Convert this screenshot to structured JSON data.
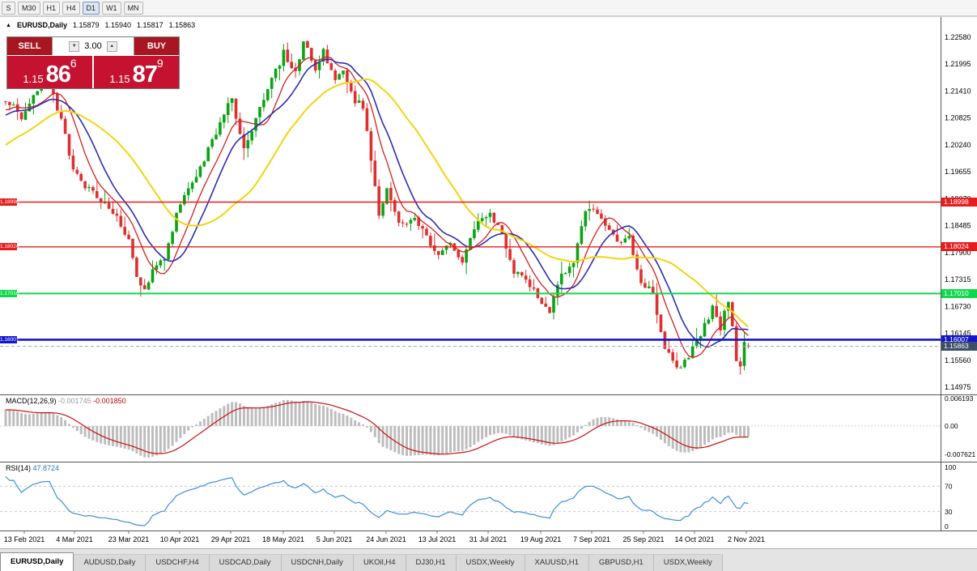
{
  "toolbar": {
    "buttons": [
      "S",
      "M30",
      "H1",
      "H4",
      "D1",
      "W1",
      "MN"
    ],
    "active": "D1"
  },
  "chart_header": {
    "collapse_icon": "▲",
    "symbol": "EURUSD,Daily",
    "open": "1.15879",
    "high": "1.15940",
    "low": "1.15817",
    "close": "1.15863"
  },
  "trade_widget": {
    "sell_label": "SELL",
    "buy_label": "BUY",
    "volume": "3.00",
    "spinner_down_icon": "▼",
    "spinner_up_icon": "▲",
    "sell_price": {
      "prefix": "1.15",
      "pips": "86",
      "point": "6"
    },
    "buy_price": {
      "prefix": "1.15",
      "pips": "87",
      "point": "9"
    }
  },
  "tabs": {
    "active_index": 0,
    "items": [
      "EURUSD,Daily",
      "AUDUSD,Daily",
      "USDCHF,H4",
      "USDCAD,Daily",
      "USDCNH,Daily",
      "UKOil,H4",
      "DJ30,H1",
      "USDX,Weekly",
      "XAUUSD,H1",
      "GBPUSD,H1",
      "USDX,Weekly"
    ]
  },
  "chart_data": {
    "type": "candlestick",
    "symbol": "EURUSD",
    "timeframe": "Daily",
    "y_axis": {
      "top": 1.2258,
      "step": 0.00585,
      "labels": [
        "1.22580",
        "1.21995",
        "1.21410",
        "1.20825",
        "1.20240",
        "1.19655",
        "1.19070",
        "1.18485",
        "1.17900",
        "1.17315",
        "1.16730",
        "1.16145",
        "1.15560",
        "1.14975"
      ]
    },
    "x_axis_dates": [
      "13 Feb 2021",
      "4 Mar 2021",
      "23 Mar 2021",
      "10 Apr 2021",
      "29 Apr 2021",
      "18 May 2021",
      "5 Jun 2021",
      "24 Jun 2021",
      "13 Jul 2021",
      "31 Jul 2021",
      "19 Aug 2021",
      "7 Sep 2021",
      "25 Sep 2021",
      "14 Oct 2021",
      "2 Nov 2021"
    ],
    "visible_count": 188,
    "prehistory_count": 55,
    "candle_colors": {
      "up": "#0aa314",
      "down": "#df2f2f"
    },
    "noise": {
      "seed": 11,
      "close": 0.0016,
      "gap": 0.00025,
      "wick": 0.003
    },
    "last_candle": {
      "open": 1.15879,
      "high": 1.1594,
      "low": 1.15817,
      "close": 1.15863
    },
    "price_path_anchors": [
      [
        -55,
        1.183
      ],
      [
        -40,
        1.19
      ],
      [
        -30,
        1.193
      ],
      [
        -22,
        1.196
      ],
      [
        -16,
        1.2
      ],
      [
        -12,
        1.206
      ],
      [
        -8,
        1.209
      ],
      [
        -4,
        1.2085
      ],
      [
        0,
        1.2125
      ],
      [
        4,
        1.2085
      ],
      [
        7,
        1.214
      ],
      [
        11,
        1.216
      ],
      [
        14,
        1.2075
      ],
      [
        17,
        1.1975
      ],
      [
        21,
        1.1925
      ],
      [
        25,
        1.1898
      ],
      [
        28,
        1.1868
      ],
      [
        31,
        1.182
      ],
      [
        33,
        1.1745
      ],
      [
        35,
        1.1706
      ],
      [
        37,
        1.1748
      ],
      [
        40,
        1.1782
      ],
      [
        44,
        1.19
      ],
      [
        48,
        1.1952
      ],
      [
        52,
        1.2035
      ],
      [
        57,
        1.2125
      ],
      [
        60,
        1.2012
      ],
      [
        63,
        1.2082
      ],
      [
        66,
        1.2148
      ],
      [
        70,
        1.2223
      ],
      [
        73,
        1.2185
      ],
      [
        75,
        1.225
      ],
      [
        78,
        1.2192
      ],
      [
        80,
        1.2225
      ],
      [
        83,
        1.2168
      ],
      [
        85,
        1.2178
      ],
      [
        88,
        1.2122
      ],
      [
        90,
        1.2108
      ],
      [
        92,
        1.1995
      ],
      [
        94,
        1.1865
      ],
      [
        96,
        1.1922
      ],
      [
        99,
        1.1852
      ],
      [
        103,
        1.1862
      ],
      [
        106,
        1.1828
      ],
      [
        109,
        1.1778
      ],
      [
        112,
        1.1812
      ],
      [
        115,
        1.1772
      ],
      [
        118,
        1.1845
      ],
      [
        122,
        1.187
      ],
      [
        125,
        1.1838
      ],
      [
        128,
        1.1742
      ],
      [
        131,
        1.1736
      ],
      [
        135,
        1.1678
      ],
      [
        137,
        1.1665
      ],
      [
        140,
        1.1742
      ],
      [
        143,
        1.1772
      ],
      [
        146,
        1.1882
      ],
      [
        148,
        1.1888
      ],
      [
        151,
        1.1842
      ],
      [
        154,
        1.1816
      ],
      [
        157,
        1.1822
      ],
      [
        160,
        1.1726
      ],
      [
        163,
        1.17
      ],
      [
        166,
        1.1585
      ],
      [
        169,
        1.1542
      ],
      [
        171,
        1.1552
      ],
      [
        174,
        1.1598
      ],
      [
        178,
        1.1668
      ],
      [
        180,
        1.1625
      ],
      [
        182,
        1.1688
      ],
      [
        184,
        1.1558
      ],
      [
        185,
        1.1542
      ],
      [
        186,
        1.1588
      ],
      [
        187,
        1.15863
      ]
    ],
    "moving_averages": [
      {
        "name": "ma-fast-red",
        "period": 8,
        "color": "#d42020",
        "width": 1.3
      },
      {
        "name": "ma-mid-blue",
        "period": 13,
        "color": "#2d2db4",
        "width": 1.6
      },
      {
        "name": "ma-slow-yellow",
        "period": 30,
        "color": "#f2d410",
        "width": 2
      }
    ],
    "horizontal_lines": [
      {
        "label": "1.18998",
        "value": 1.18998,
        "color": "#e81c1c",
        "width": 1.4
      },
      {
        "label": "1.18024",
        "value": 1.18024,
        "color": "#e81c1c",
        "width": 1.4
      },
      {
        "label": "1.17010",
        "value": 1.1701,
        "color": "#0fd94a",
        "width": 2
      },
      {
        "label": "1.16007",
        "value": 1.16007,
        "color": "#1414cc",
        "width": 2.6
      }
    ],
    "current_price": {
      "label": "1.15863",
      "value": 1.15863,
      "tag_color": "#3d4f66"
    },
    "indicators": [
      {
        "type": "MACD",
        "label": "MACD(12,26,9)",
        "params": [
          12,
          26,
          9
        ],
        "value_main": "-0.001745",
        "value_signal": "-0.001850",
        "axis_labels": [
          "0.006193",
          "0.00",
          "-0.007621"
        ],
        "histogram_color": "#bdbdbd",
        "signal_color": "#c81010"
      },
      {
        "type": "RSI",
        "label": "RSI(14)",
        "params": [
          14
        ],
        "value": "47.8724",
        "axis_labels": [
          "100",
          "70",
          "30",
          "0"
        ],
        "levels": [
          70,
          30
        ],
        "line_color": "#3c8ddc"
      }
    ]
  }
}
